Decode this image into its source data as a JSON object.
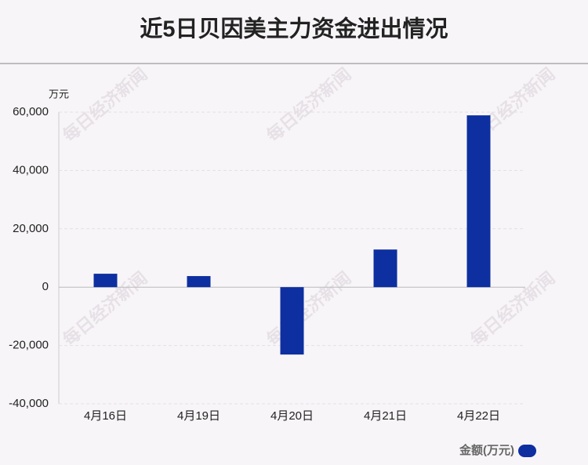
{
  "chart_data": {
    "type": "bar",
    "title": "近5日贝因美主力资金进出情况",
    "y_unit": "万元",
    "categories": [
      "4月16日",
      "4月19日",
      "4月20日",
      "4月21日",
      "4月22日"
    ],
    "series": [
      {
        "name": "金额(万元)",
        "color": "#0d2fa0",
        "values": [
          4600,
          3800,
          -23100,
          12900,
          58900
        ]
      }
    ],
    "ylim": [
      -40000,
      60000
    ],
    "yticks": [
      {
        "value": -40000,
        "label": "-40,000"
      },
      {
        "value": -20000,
        "label": "-20,000"
      },
      0,
      {
        "value": 20000,
        "label": "20,000"
      },
      {
        "value": 40000,
        "label": "40,000"
      },
      {
        "value": 60000,
        "label": "60,000"
      }
    ],
    "grid": true,
    "legend": "bottom-right",
    "watermark": "每日经济新闻"
  }
}
